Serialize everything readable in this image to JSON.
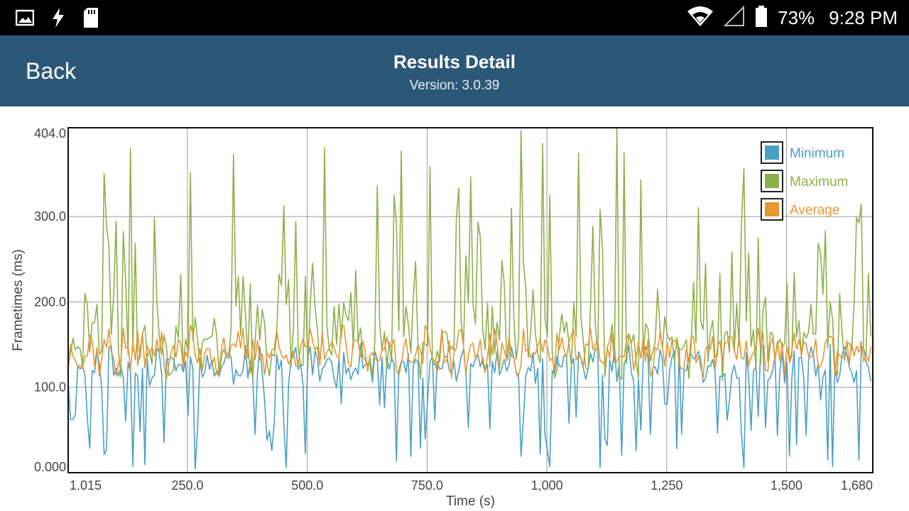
{
  "status_bar": {
    "battery_percent": "73%",
    "time": "9:28 PM",
    "left_icons": [
      "image-icon",
      "flash-icon",
      "sd-card-icon"
    ],
    "right_icons": [
      "wifi-icon",
      "no-signal-icon",
      "battery-icon"
    ]
  },
  "app_bar": {
    "back_label": "Back",
    "title": "Results Detail",
    "version": "Version: 3.0.39",
    "color": "#2c5878"
  },
  "chart_data": {
    "type": "line",
    "xlabel": "Time (s)",
    "ylabel": "Frametimes (ms)",
    "xlim": [
      1.015,
      1680
    ],
    "ylim": [
      0,
      404
    ],
    "x_ticks": [
      1.015,
      250,
      500,
      750,
      1000,
      1250,
      1500,
      1680
    ],
    "x_tick_labels": [
      "1.015",
      "250.0",
      "500.0",
      "750.0",
      "1,000",
      "1,250",
      "1,500",
      "1,680"
    ],
    "y_ticks": [
      0,
      100,
      200,
      300,
      404
    ],
    "y_tick_labels": [
      "0.000",
      "100.0",
      "200.0",
      "300.0",
      "404.0"
    ],
    "grid": true,
    "legend_position": "top-right",
    "sample_step": 5,
    "series": [
      {
        "name": "Minimum",
        "color": "#4b9fc3",
        "base": 125,
        "amp": 18,
        "dip_min": 4,
        "dip_max": 85,
        "seed": 11
      },
      {
        "name": "Maximum",
        "color": "#8db04a",
        "base": 150,
        "amp": 28,
        "spike_min": 195,
        "spike_max": 404,
        "seed": 23
      },
      {
        "name": "Average",
        "color": "#e8962e",
        "base": 142,
        "amp": 22,
        "seed": 37
      }
    ]
  }
}
